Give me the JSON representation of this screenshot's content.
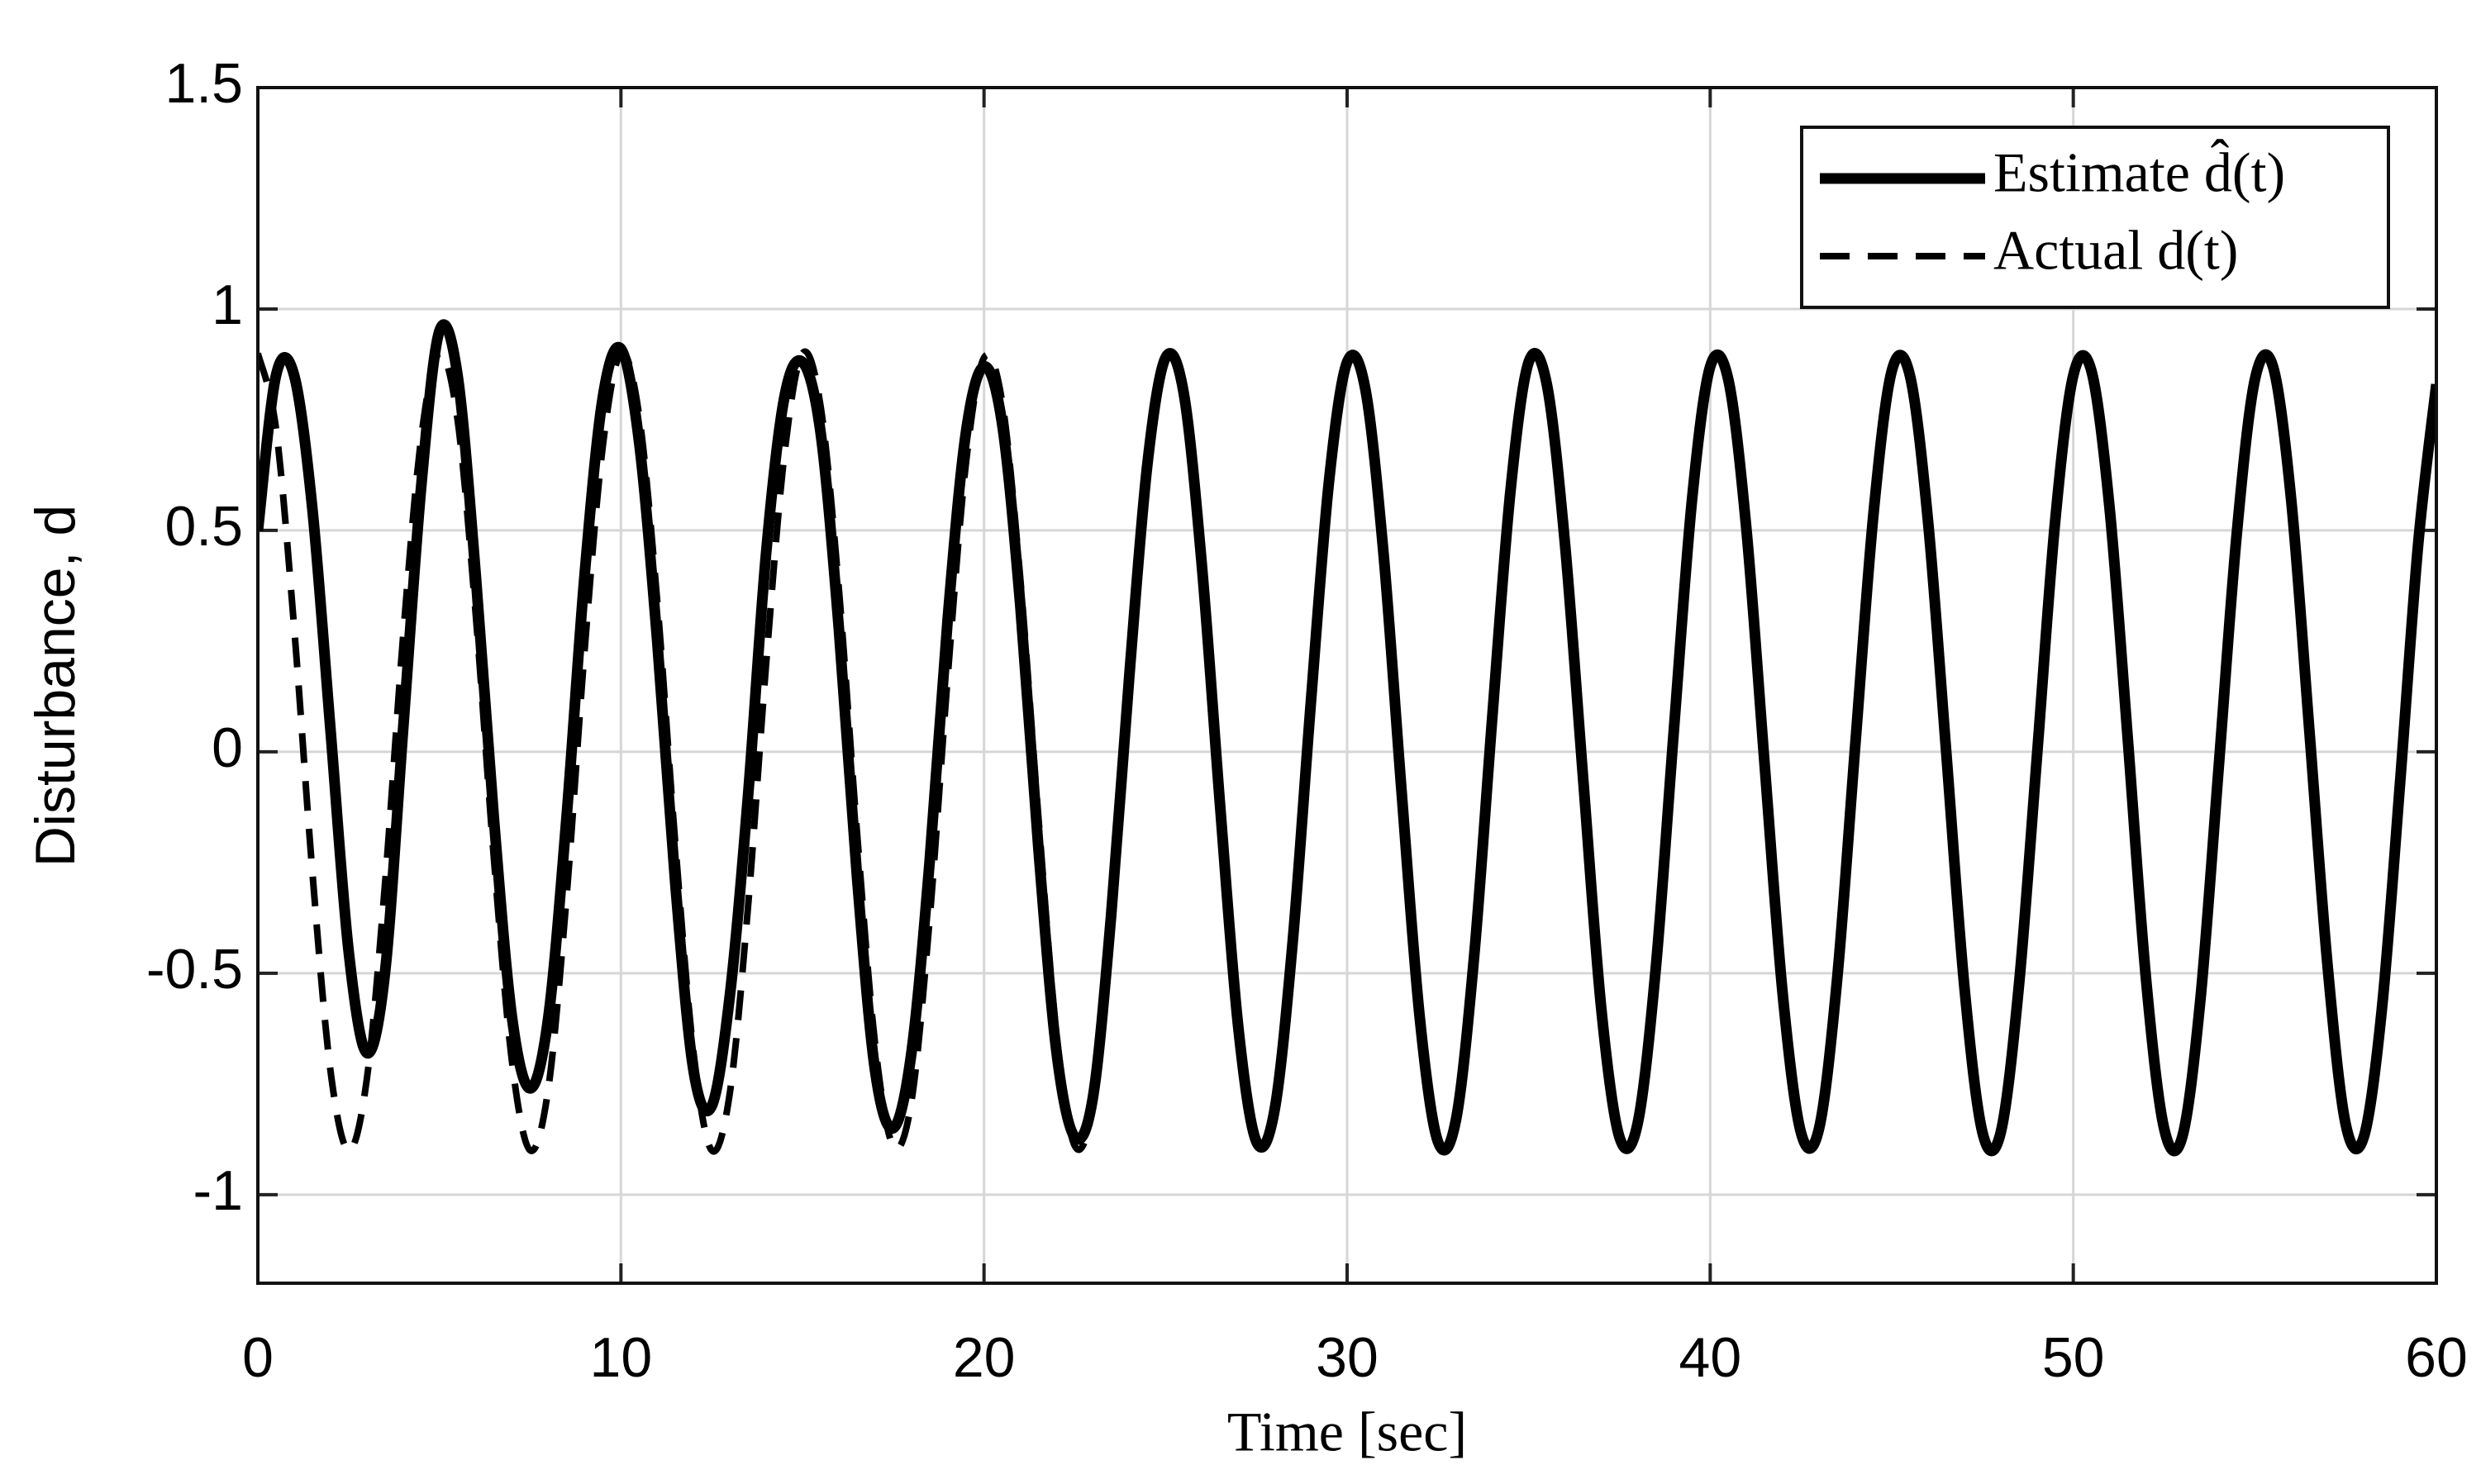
{
  "chart_data": {
    "type": "line",
    "xlabel": "Time [sec]",
    "ylabel": "Disturbance, d",
    "x": [
      0,
      0.5,
      1,
      1.5,
      2,
      2.5,
      3,
      3.5,
      4,
      4.5,
      5,
      5.5,
      6,
      6.5,
      7,
      7.5,
      8,
      8.5,
      9,
      9.5,
      10,
      10.5,
      11,
      11.5,
      12,
      12.5,
      13,
      13.5,
      14,
      14.5,
      15,
      15.5,
      16,
      16.5,
      17,
      17.5,
      18,
      18.5,
      19,
      19.5,
      20,
      20.5,
      21,
      21.5,
      22,
      22.5,
      23,
      23.5,
      24,
      24.5,
      25,
      25.5,
      26,
      26.5,
      27,
      27.5,
      28,
      28.5,
      29,
      29.5,
      30,
      30.5,
      31,
      31.5,
      32,
      32.5,
      33,
      33.5,
      34,
      34.5,
      35,
      35.5,
      36,
      36.5,
      37,
      37.5,
      38,
      38.5,
      39,
      39.5,
      40,
      40.5,
      41,
      41.5,
      42,
      42.5,
      43,
      43.5,
      44,
      44.5,
      45,
      45.5,
      46,
      46.5,
      47,
      47.5,
      48,
      48.5,
      49,
      49.5,
      50,
      50.5,
      51,
      51.5,
      52,
      52.5,
      53,
      53.5,
      54,
      54.5,
      55,
      55.5,
      56,
      56.5,
      57,
      57.5,
      58,
      58.5,
      59,
      59.5,
      60
    ],
    "series": [
      {
        "name": "Estimate d̂(t)",
        "color": "#000000",
        "dash": "solid",
        "values": [
          0.5,
          0.85,
          0.85,
          0.55,
          0.05,
          -0.45,
          -0.68,
          -0.5,
          0.05,
          0.6,
          0.95,
          0.85,
          0.4,
          -0.15,
          -0.6,
          -0.76,
          -0.6,
          -0.15,
          0.4,
          0.8,
          0.91,
          0.7,
          0.25,
          -0.3,
          -0.72,
          -0.8,
          -0.55,
          -0.1,
          0.45,
          0.8,
          0.88,
          0.72,
          0.28,
          -0.28,
          -0.72,
          -0.85,
          -0.68,
          -0.25,
          0.3,
          0.72,
          0.87,
          0.74,
          0.33,
          -0.22,
          -0.68,
          -0.87,
          -0.78,
          -0.37,
          0.17,
          0.65,
          0.89,
          0.81,
          0.42,
          -0.12,
          -0.62,
          -0.88,
          -0.81,
          -0.43,
          0.11,
          0.61,
          0.88,
          0.82,
          0.45,
          -0.09,
          -0.6,
          -0.88,
          -0.83,
          -0.46,
          0.08,
          0.59,
          0.88,
          0.83,
          0.47,
          -0.06,
          -0.58,
          -0.87,
          -0.84,
          -0.49,
          0.05,
          0.57,
          0.87,
          0.84,
          0.5,
          -0.03,
          -0.55,
          -0.86,
          -0.85,
          -0.51,
          0.02,
          0.54,
          0.86,
          0.85,
          0.52,
          0,
          -0.53,
          -0.86,
          -0.86,
          -0.53,
          -0.01,
          0.52,
          0.85,
          0.86,
          0.55,
          0.03,
          -0.51,
          -0.85,
          -0.87,
          -0.56,
          -0.04,
          0.49,
          0.84,
          0.87,
          0.57,
          0.05,
          -0.48,
          -0.84,
          -0.87,
          -0.58,
          -0.07,
          0.47,
          0.83
        ]
      },
      {
        "name": "Actual d(t)",
        "color": "#000000",
        "dash": "dashed",
        "values": [
          0.9,
          0.73,
          0.28,
          -0.27,
          -0.72,
          -0.9,
          -0.74,
          -0.3,
          0.26,
          0.71,
          0.9,
          0.75,
          0.31,
          -0.24,
          -0.7,
          -0.9,
          -0.76,
          -0.33,
          0.23,
          0.69,
          0.9,
          0.76,
          0.34,
          -0.21,
          -0.68,
          -0.9,
          -0.77,
          -0.35,
          0.2,
          0.67,
          0.9,
          0.78,
          0.37,
          -0.18,
          -0.66,
          -0.89,
          -0.79,
          -0.38,
          0.17,
          0.65,
          0.89,
          0.79,
          0.39,
          -0.15,
          -0.64,
          -0.89,
          -0.8,
          -0.41,
          0.14,
          0.63,
          0.89,
          0.81,
          0.42,
          -0.12,
          -0.62,
          -0.88,
          -0.81,
          -0.43,
          0.11,
          0.61,
          0.88,
          0.82,
          0.45,
          -0.09,
          -0.6,
          -0.88,
          -0.83,
          -0.46,
          0.08,
          0.59,
          0.88,
          0.83,
          0.47,
          -0.06,
          -0.58,
          -0.87,
          -0.84,
          -0.49,
          0.05,
          0.57,
          0.87,
          0.84,
          0.5,
          -0.03,
          -0.55,
          -0.86,
          -0.85,
          -0.51,
          0.02,
          0.54,
          0.86,
          0.85,
          0.52,
          0,
          -0.53,
          -0.86,
          -0.86,
          -0.53,
          -0.01,
          0.52,
          0.85,
          0.86,
          0.55,
          0.03,
          -0.51,
          -0.85,
          -0.87,
          -0.56,
          -0.04,
          0.49,
          0.84,
          0.87,
          0.57,
          0.05,
          -0.48,
          -0.84,
          -0.87,
          -0.58,
          -0.07,
          0.47,
          0.83
        ]
      }
    ],
    "xlim": [
      0,
      60
    ],
    "xticks": [
      0,
      10,
      20,
      30,
      40,
      50,
      60
    ],
    "ylim": [
      -1.2,
      1.5
    ],
    "yticks": [
      -1,
      -0.5,
      0,
      0.5,
      1,
      1.5
    ],
    "grid": true,
    "legend": "upper right"
  }
}
